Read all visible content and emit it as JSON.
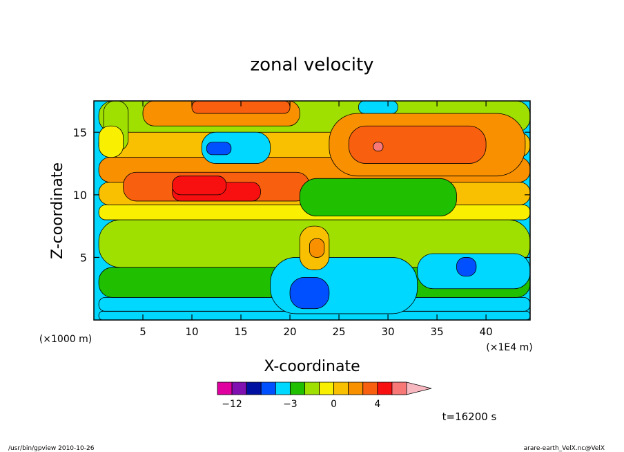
{
  "chart_data": {
    "type": "heatmap",
    "title": "zonal velocity",
    "xlabel": "X-coordinate",
    "ylabel": "Z-coordinate",
    "x_unit_left": "(×1000 m)",
    "x_unit_right": "(×1E4 m)",
    "xlim": [
      0,
      44.5
    ],
    "ylim": [
      0,
      17.5
    ],
    "x_ticks": [
      "5",
      "10",
      "15",
      "20",
      "25",
      "30",
      "35",
      "40"
    ],
    "y_ticks": [
      "5",
      "10",
      "15"
    ],
    "grid": false,
    "colorbar": {
      "levels": [
        -14,
        -12,
        -9,
        -6,
        -4,
        -3,
        -2,
        -1,
        0,
        1,
        2,
        4,
        6
      ],
      "labels": [
        "−12",
        "−3",
        "0",
        "4"
      ],
      "colors": [
        "#e000a0",
        "#8010b0",
        "#0010a0",
        "#0050ff",
        "#00d8ff",
        "#20c000",
        "#a0e000",
        "#f8f000",
        "#f8c000",
        "#f89000",
        "#f86010",
        "#f81010",
        "#f87878"
      ],
      "extend": "max"
    },
    "regions": [
      {
        "x": [
          0.5,
          44.5
        ],
        "y": [
          0,
          0.7
        ],
        "value": -4
      },
      {
        "x": [
          0.5,
          44.5
        ],
        "y": [
          0.7,
          1.8
        ],
        "value": -3.5
      },
      {
        "x": [
          0.5,
          44.5
        ],
        "y": [
          1.8,
          4.2
        ],
        "value": -2.5
      },
      {
        "x": [
          0.5,
          44.5
        ],
        "y": [
          4.2,
          8.0
        ],
        "value": -1.5
      },
      {
        "x": [
          0.5,
          44.5
        ],
        "y": [
          8.0,
          9.2
        ],
        "value": -0.5
      },
      {
        "x": [
          0.5,
          44.5
        ],
        "y": [
          9.2,
          11.0
        ],
        "value": 0.5
      },
      {
        "x": [
          0.5,
          44.5
        ],
        "y": [
          11.0,
          13.0
        ],
        "value": 1.5
      },
      {
        "x": [
          0.5,
          44.5
        ],
        "y": [
          13.0,
          15.0
        ],
        "value": 0.5
      },
      {
        "x": [
          0.5,
          44.5
        ],
        "y": [
          15.0,
          17.5
        ],
        "value": -1.5
      },
      {
        "x": [
          3.0,
          22.0
        ],
        "y": [
          9.5,
          11.8
        ],
        "value": 3
      },
      {
        "x": [
          8.0,
          17.0
        ],
        "y": [
          9.5,
          11.0
        ],
        "value": 5
      },
      {
        "x": [
          24.0,
          44.0
        ],
        "y": [
          11.5,
          16.5
        ],
        "value": 1.5
      },
      {
        "x": [
          26.0,
          40.0
        ],
        "y": [
          12.5,
          15.5
        ],
        "value": 3
      },
      {
        "x": [
          28.5,
          29.5
        ],
        "y": [
          13.5,
          14.2
        ],
        "value": 6
      },
      {
        "x": [
          5.0,
          21.0
        ],
        "y": [
          15.5,
          17.5
        ],
        "value": 1.5
      },
      {
        "x": [
          10.0,
          20.0
        ],
        "y": [
          16.5,
          17.5
        ],
        "value": 3
      },
      {
        "x": [
          11.0,
          18.0
        ],
        "y": [
          12.5,
          15.0
        ],
        "value": -4
      },
      {
        "x": [
          11.5,
          14.0
        ],
        "y": [
          13.2,
          14.2
        ],
        "value": -6
      },
      {
        "x": [
          24.0,
          29.0
        ],
        "y": [
          8.7,
          10.0
        ],
        "value": -4
      },
      {
        "x": [
          21.0,
          37.0
        ],
        "y": [
          8.3,
          11.3
        ],
        "value": -2.5
      },
      {
        "x": [
          18.0,
          33.0
        ],
        "y": [
          0.5,
          5.0
        ],
        "value": -4
      },
      {
        "x": [
          33.0,
          44.5
        ],
        "y": [
          2.5,
          5.3
        ],
        "value": -4
      },
      {
        "x": [
          20.0,
          24.0
        ],
        "y": [
          0.9,
          3.4
        ],
        "value": -6
      },
      {
        "x": [
          21.0,
          24.0
        ],
        "y": [
          4.0,
          7.5
        ],
        "value": 0.5
      },
      {
        "x": [
          22.0,
          23.5
        ],
        "y": [
          5.0,
          6.5
        ],
        "value": 1.5
      },
      {
        "x": [
          37.0,
          39.0
        ],
        "y": [
          3.5,
          5.0
        ],
        "value": -6
      },
      {
        "x": [
          8.0,
          13.5
        ],
        "y": [
          10.0,
          11.5
        ],
        "value": 4
      },
      {
        "x": [
          1.0,
          3.5
        ],
        "y": [
          13.5,
          17.5
        ],
        "value": -2
      },
      {
        "x": [
          0.5,
          3.0
        ],
        "y": [
          13.0,
          15.5
        ],
        "value": -1
      },
      {
        "x": [
          27.0,
          31.0
        ],
        "y": [
          16.5,
          17.5
        ],
        "value": -3.5
      }
    ],
    "annotations": [
      "t=16200 s"
    ]
  },
  "footer": {
    "left": "/usr/bin/gpview   2010-10-26",
    "right": "arare-earth_VelX.nc@VelX"
  }
}
